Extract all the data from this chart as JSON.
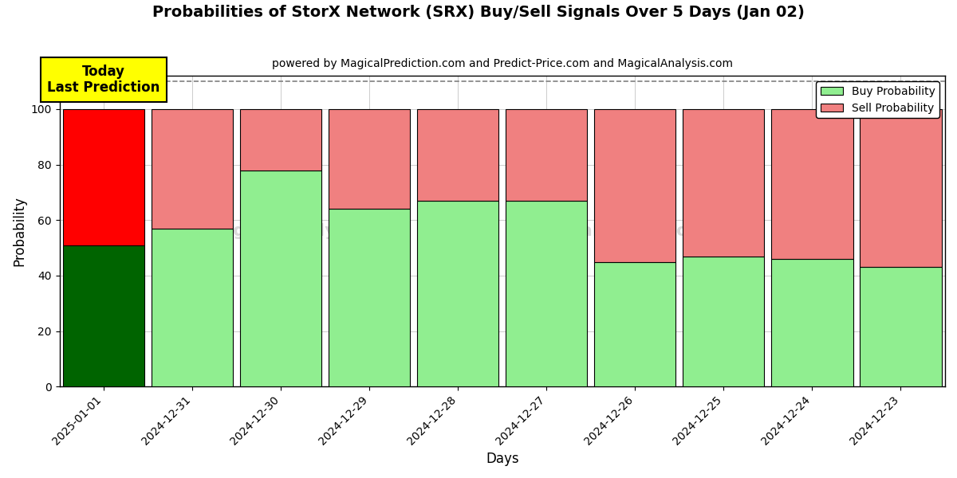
{
  "title": "Probabilities of StorX Network (SRX) Buy/Sell Signals Over 5 Days (Jan 02)",
  "subtitle": "powered by MagicalPrediction.com and Predict-Price.com and MagicalAnalysis.com",
  "xlabel": "Days",
  "ylabel": "Probability",
  "categories": [
    "2025-01-01",
    "2024-12-31",
    "2024-12-30",
    "2024-12-29",
    "2024-12-28",
    "2024-12-27",
    "2024-12-26",
    "2024-12-25",
    "2024-12-24",
    "2024-12-23"
  ],
  "buy_values": [
    51,
    57,
    78,
    64,
    67,
    67,
    45,
    47,
    46,
    43
  ],
  "sell_values": [
    49,
    43,
    22,
    36,
    33,
    33,
    55,
    53,
    54,
    57
  ],
  "buy_colors": [
    "#006400",
    "#90EE90",
    "#90EE90",
    "#90EE90",
    "#90EE90",
    "#90EE90",
    "#90EE90",
    "#90EE90",
    "#90EE90",
    "#90EE90"
  ],
  "sell_colors": [
    "#FF0000",
    "#F08080",
    "#F08080",
    "#F08080",
    "#F08080",
    "#F08080",
    "#F08080",
    "#F08080",
    "#F08080",
    "#F08080"
  ],
  "ylim": [
    0,
    112
  ],
  "yticks": [
    0,
    20,
    40,
    60,
    80,
    100
  ],
  "dashed_line_y": 110,
  "annotation_text": "Today\nLast Prediction",
  "annotation_bg": "#FFFF00",
  "bar_edge_color": "#000000",
  "bar_linewidth": 0.8,
  "bar_width": 0.92,
  "grid_color": "#CCCCCC",
  "background_color": "#FFFFFF",
  "legend_buy_color": "#90EE90",
  "legend_sell_color": "#F08080",
  "title_fontsize": 14,
  "subtitle_fontsize": 10,
  "axis_label_fontsize": 12,
  "tick_fontsize": 10,
  "legend_fontsize": 10,
  "annotation_fontsize": 12
}
